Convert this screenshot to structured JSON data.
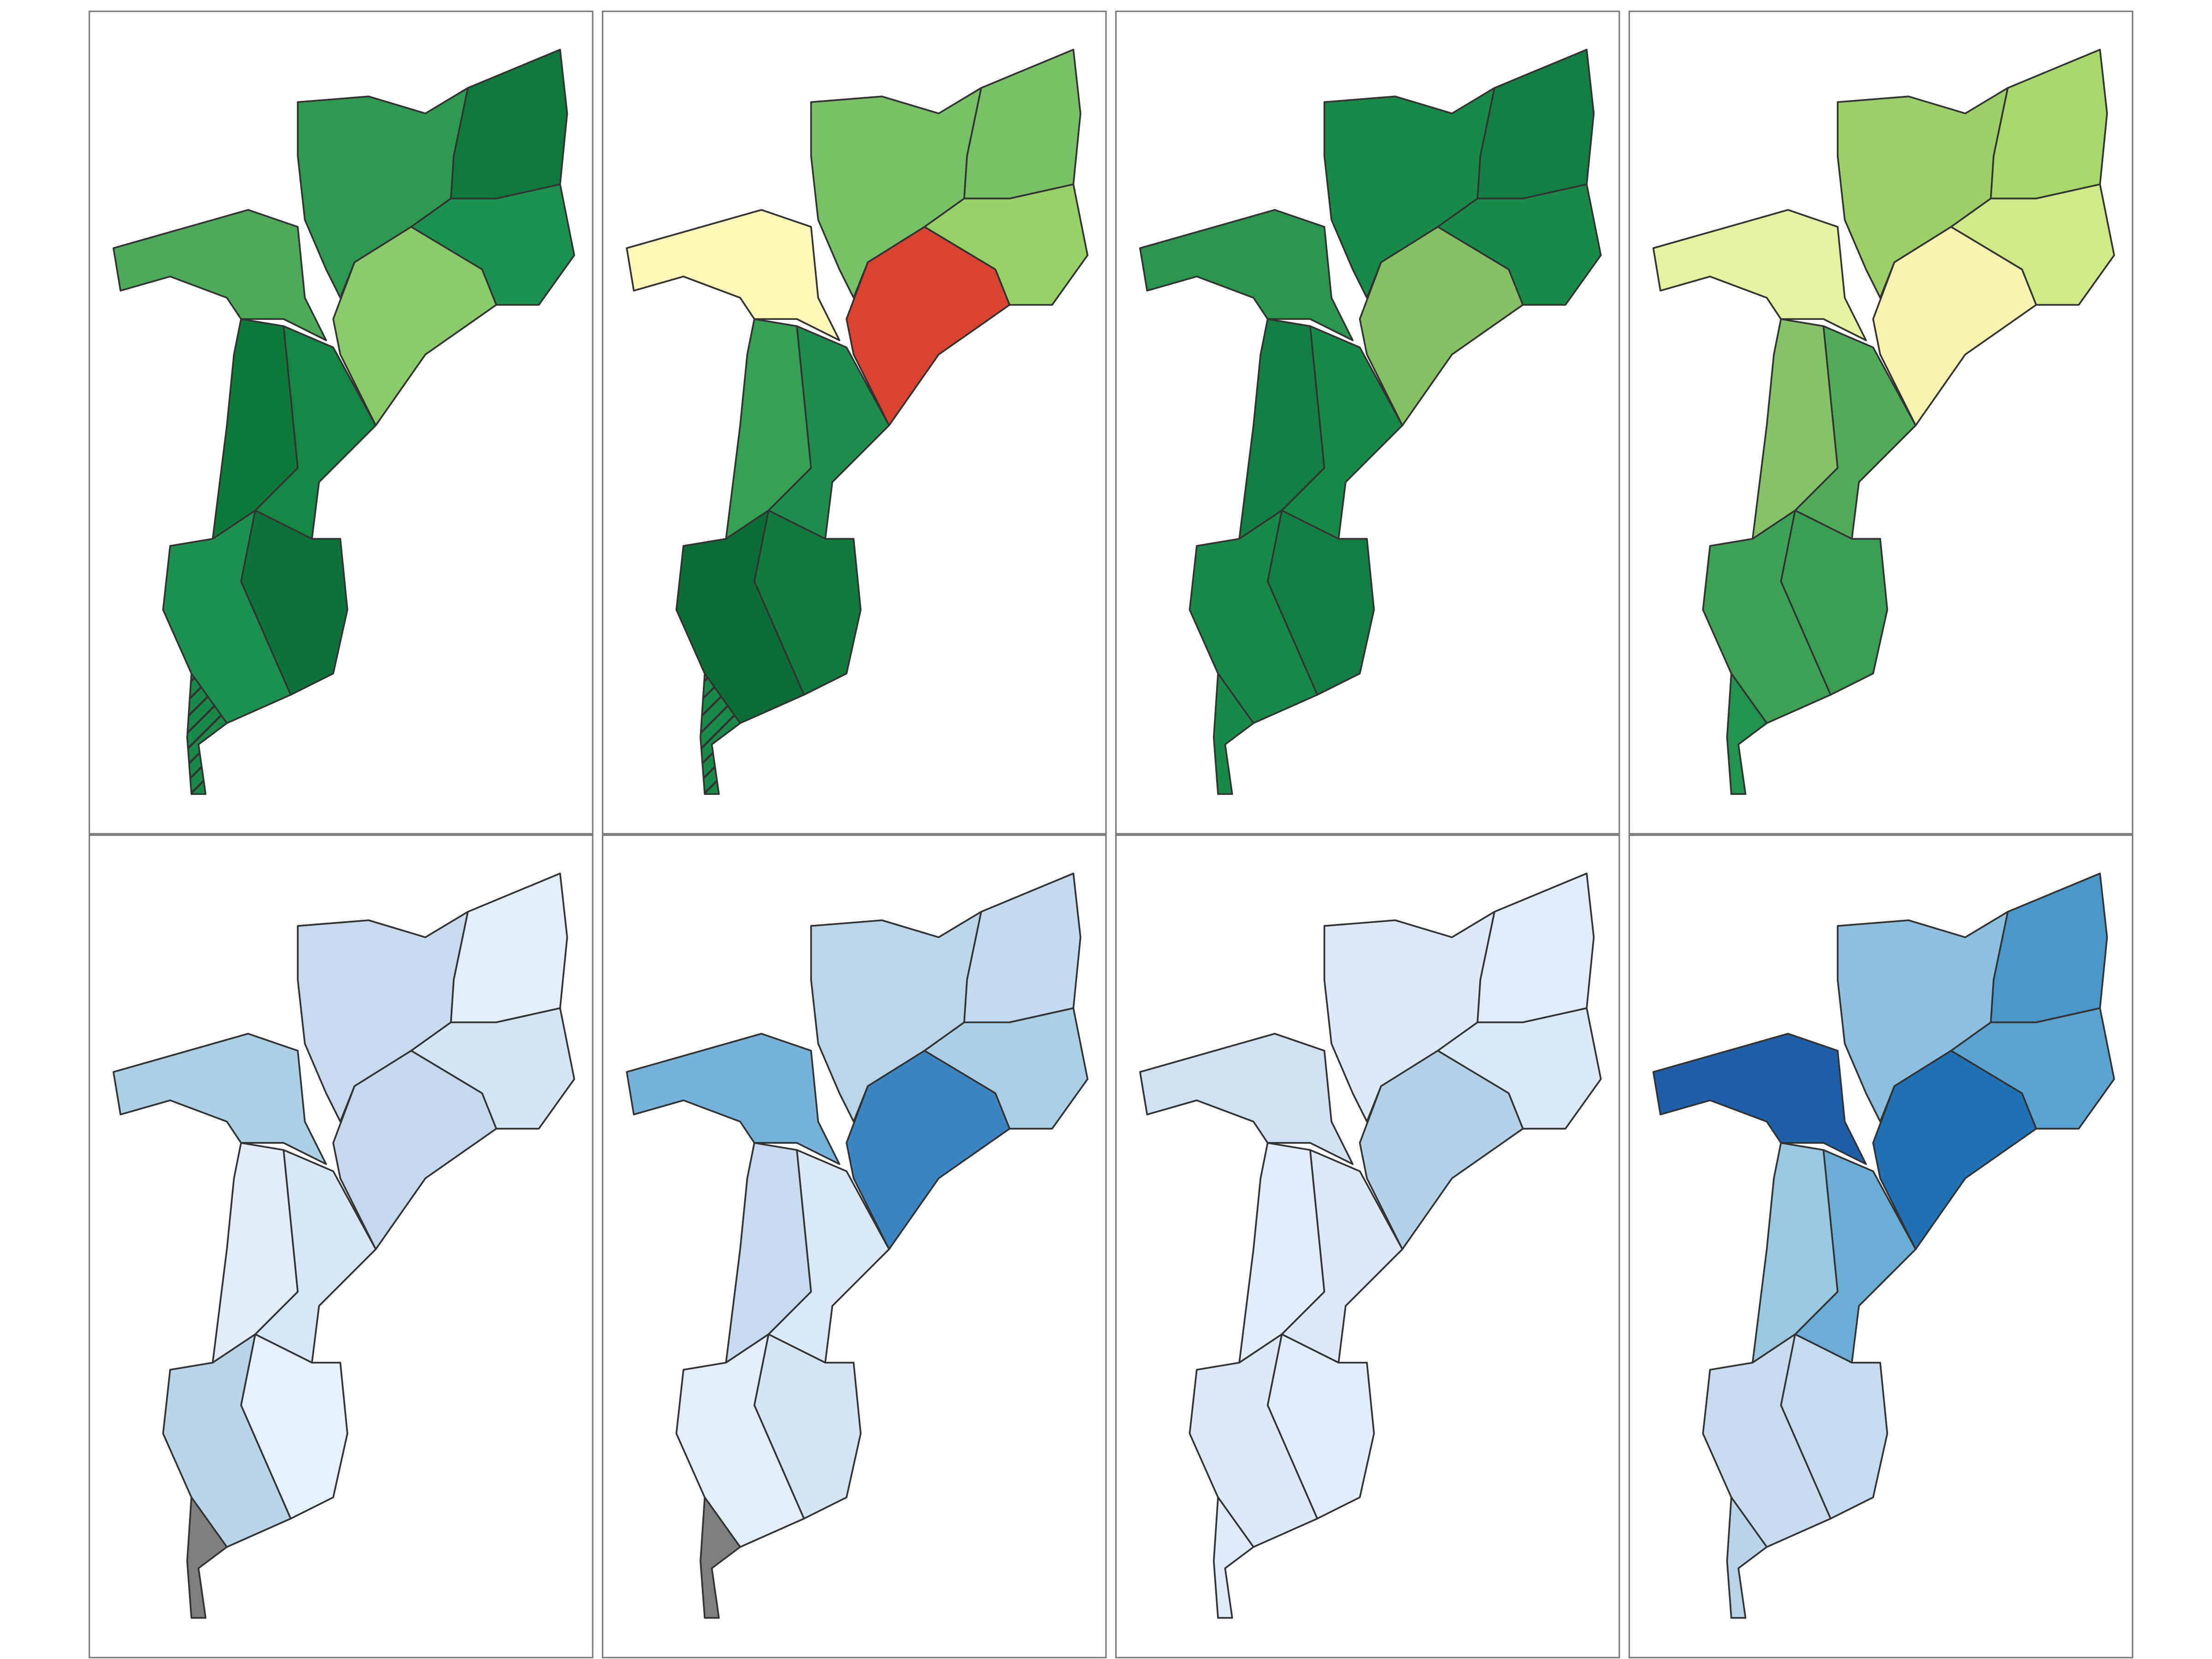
{
  "panels": [
    {
      "fills": [
        "#2e9a50",
        "#0f7a3c",
        "#1d9150",
        "#8ccb69",
        "#4eaa5b",
        "#0e7a3a",
        "#158744",
        "#0c723a",
        "#1d9150",
        "#1a8a48"
      ],
      "hatched": true
    },
    {
      "fills": [
        "#78c166",
        "#78c166",
        "#98d168",
        "#d9432f",
        "#fff8b8",
        "#36a055",
        "#1f8e4c",
        "#137a3e",
        "#0c6c36",
        "#1a8a48"
      ],
      "hatched": true
    },
    {
      "fills": [
        "#188a48",
        "#137f42",
        "#1a8a48",
        "#86c164",
        "#2a964e",
        "#137f42",
        "#188a48",
        "#137f42",
        "#188a48",
        "#1a8a48"
      ],
      "hatched": false
    },
    {
      "fills": [
        "#9ccf67",
        "#a8d86b",
        "#d0ea8a",
        "#f7f4b0",
        "#e6f2a0",
        "#86c267",
        "#50ab5a",
        "#3a9e55",
        "#3ea256",
        "#239450"
      ],
      "hatched": false
    },
    {
      "fills": [
        "#c8daee",
        "#e3eef8",
        "#d6e5f3",
        "#c4d9ee",
        "#abcfe5",
        "#e2edf8",
        "#d8e7f5",
        "#e5f0fa",
        "#b8d5ea",
        "#7f7f7f"
      ],
      "hatched": false
    },
    {
      "fills": [
        "#b9d6ea",
        "#c4daee",
        "#abd0e6",
        "#3b86c2",
        "#76b3da",
        "#c6dbef",
        "#dbe9f6",
        "#d5e5f4",
        "#e3eef9",
        "#7f7f7f"
      ],
      "hatched": false
    },
    {
      "fills": [
        "#dde9f6",
        "#e0ecf8",
        "#dbe8f5",
        "#b3d2e9",
        "#cfe1f2",
        "#e1edf8",
        "#dde9f6",
        "#e1edf8",
        "#dde9f6",
        "#dfebf7"
      ],
      "hatched": false
    },
    {
      "fills": [
        "#8cc0de",
        "#4a98c9",
        "#5ba3d0",
        "#2171b5",
        "#1d5fa8",
        "#9ac8e0",
        "#6aaed6",
        "#c5dbef",
        "#c8dcf0",
        "#b9d4ea"
      ],
      "hatched": false
    }
  ]
}
